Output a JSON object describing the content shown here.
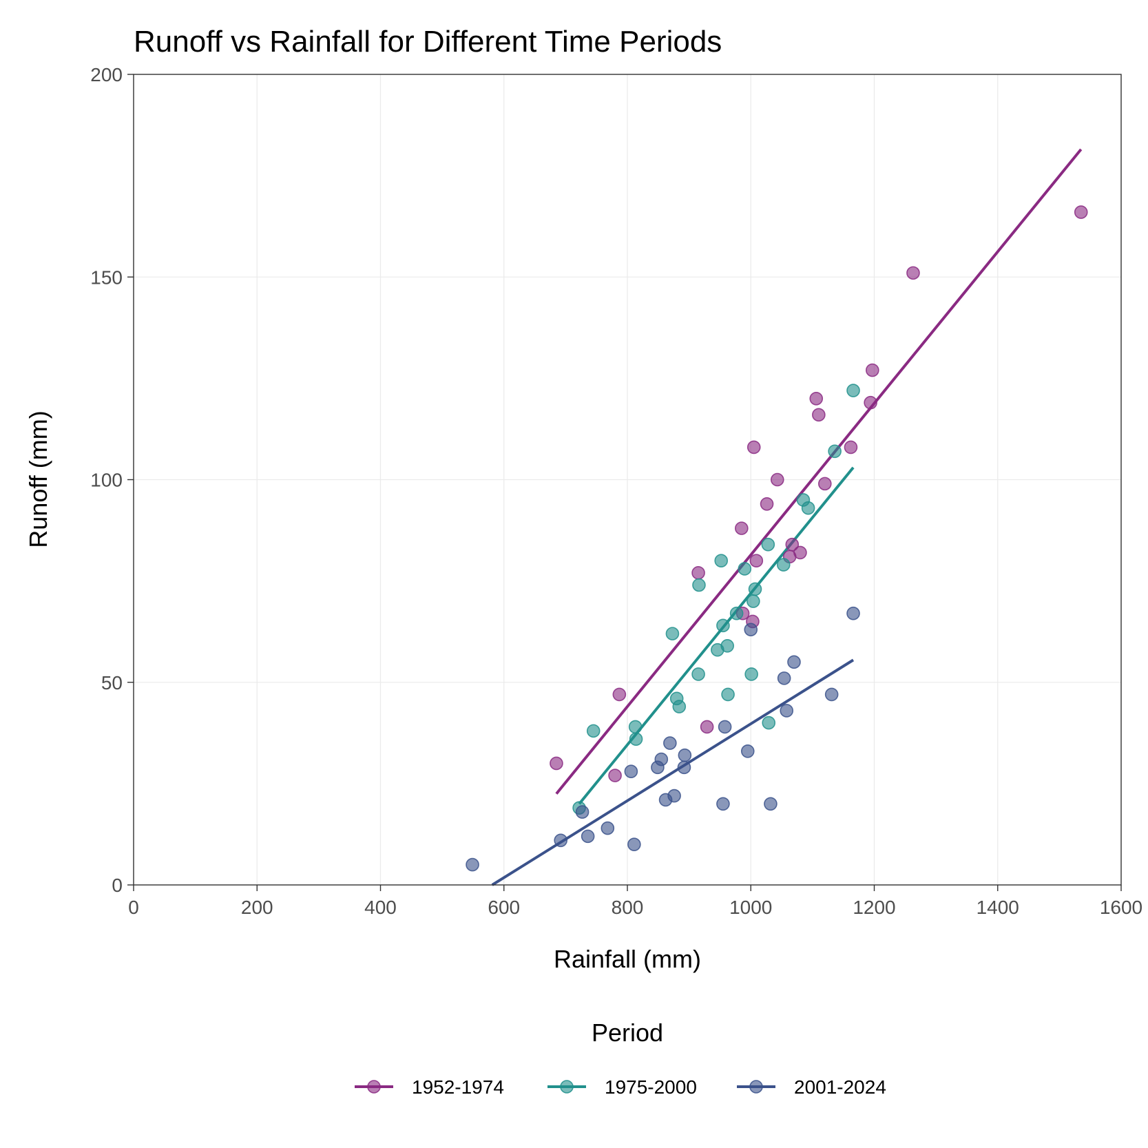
{
  "chart_data": {
    "type": "scatter",
    "title": "Runoff vs Rainfall for Different Time Periods",
    "xlabel": "Rainfall (mm)",
    "ylabel": "Runoff (mm)",
    "xlim": [
      0,
      1600
    ],
    "ylim": [
      0,
      200
    ],
    "x_ticks": [
      0,
      200,
      400,
      600,
      800,
      1000,
      1200,
      1400,
      1600
    ],
    "y_ticks": [
      0,
      50,
      100,
      150,
      200
    ],
    "grid": true,
    "legend": {
      "title": "Period",
      "position": "bottom"
    },
    "series": [
      {
        "name": "1952-1974",
        "color": "#8a2a82",
        "points": [
          [
            685,
            30
          ],
          [
            780,
            27
          ],
          [
            787,
            47
          ],
          [
            915,
            77
          ],
          [
            929,
            39
          ],
          [
            985,
            88
          ],
          [
            987,
            67
          ],
          [
            1003,
            65
          ],
          [
            1005,
            108
          ],
          [
            1009,
            80
          ],
          [
            1026,
            94
          ],
          [
            1043,
            100
          ],
          [
            1063,
            81
          ],
          [
            1067,
            84
          ],
          [
            1080,
            82
          ],
          [
            1106,
            120
          ],
          [
            1110,
            116
          ],
          [
            1120,
            99
          ],
          [
            1162,
            108
          ],
          [
            1194,
            119
          ],
          [
            1197,
            127
          ],
          [
            1263,
            151
          ],
          [
            1535,
            166
          ]
        ],
        "fit": {
          "x": [
            685,
            1535
          ],
          "y": [
            22.5,
            181.5
          ]
        }
      },
      {
        "name": "1975-2000",
        "color": "#21908c",
        "points": [
          [
            722,
            19
          ],
          [
            745,
            38
          ],
          [
            813,
            39
          ],
          [
            814,
            36
          ],
          [
            873,
            62
          ],
          [
            880,
            46
          ],
          [
            884,
            44
          ],
          [
            915,
            52
          ],
          [
            916,
            74
          ],
          [
            946,
            58
          ],
          [
            952,
            80
          ],
          [
            955,
            64
          ],
          [
            962,
            59
          ],
          [
            963,
            47
          ],
          [
            977,
            67
          ],
          [
            990,
            78
          ],
          [
            1001,
            52
          ],
          [
            1004,
            70
          ],
          [
            1007,
            73
          ],
          [
            1028,
            84
          ],
          [
            1029,
            40
          ],
          [
            1053,
            79
          ],
          [
            1085,
            95
          ],
          [
            1093,
            93
          ],
          [
            1136,
            107
          ],
          [
            1166,
            122
          ]
        ],
        "fit": {
          "x": [
            722,
            1166
          ],
          "y": [
            20,
            103
          ]
        }
      },
      {
        "name": "2001-2024",
        "color": "#3b528b",
        "points": [
          [
            549,
            5
          ],
          [
            692,
            11
          ],
          [
            727,
            18
          ],
          [
            736,
            12
          ],
          [
            768,
            14
          ],
          [
            806,
            28
          ],
          [
            811,
            10
          ],
          [
            849,
            29
          ],
          [
            855,
            31
          ],
          [
            862,
            21
          ],
          [
            869,
            35
          ],
          [
            876,
            22
          ],
          [
            892,
            29
          ],
          [
            893,
            32
          ],
          [
            955,
            20
          ],
          [
            958,
            39
          ],
          [
            995,
            33
          ],
          [
            1000,
            63
          ],
          [
            1032,
            20
          ],
          [
            1054,
            51
          ],
          [
            1058,
            43
          ],
          [
            1070,
            55
          ],
          [
            1131,
            47
          ],
          [
            1166,
            67
          ]
        ],
        "fit": {
          "x": [
            581,
            1166
          ],
          "y": [
            0,
            55.5
          ]
        }
      }
    ]
  }
}
